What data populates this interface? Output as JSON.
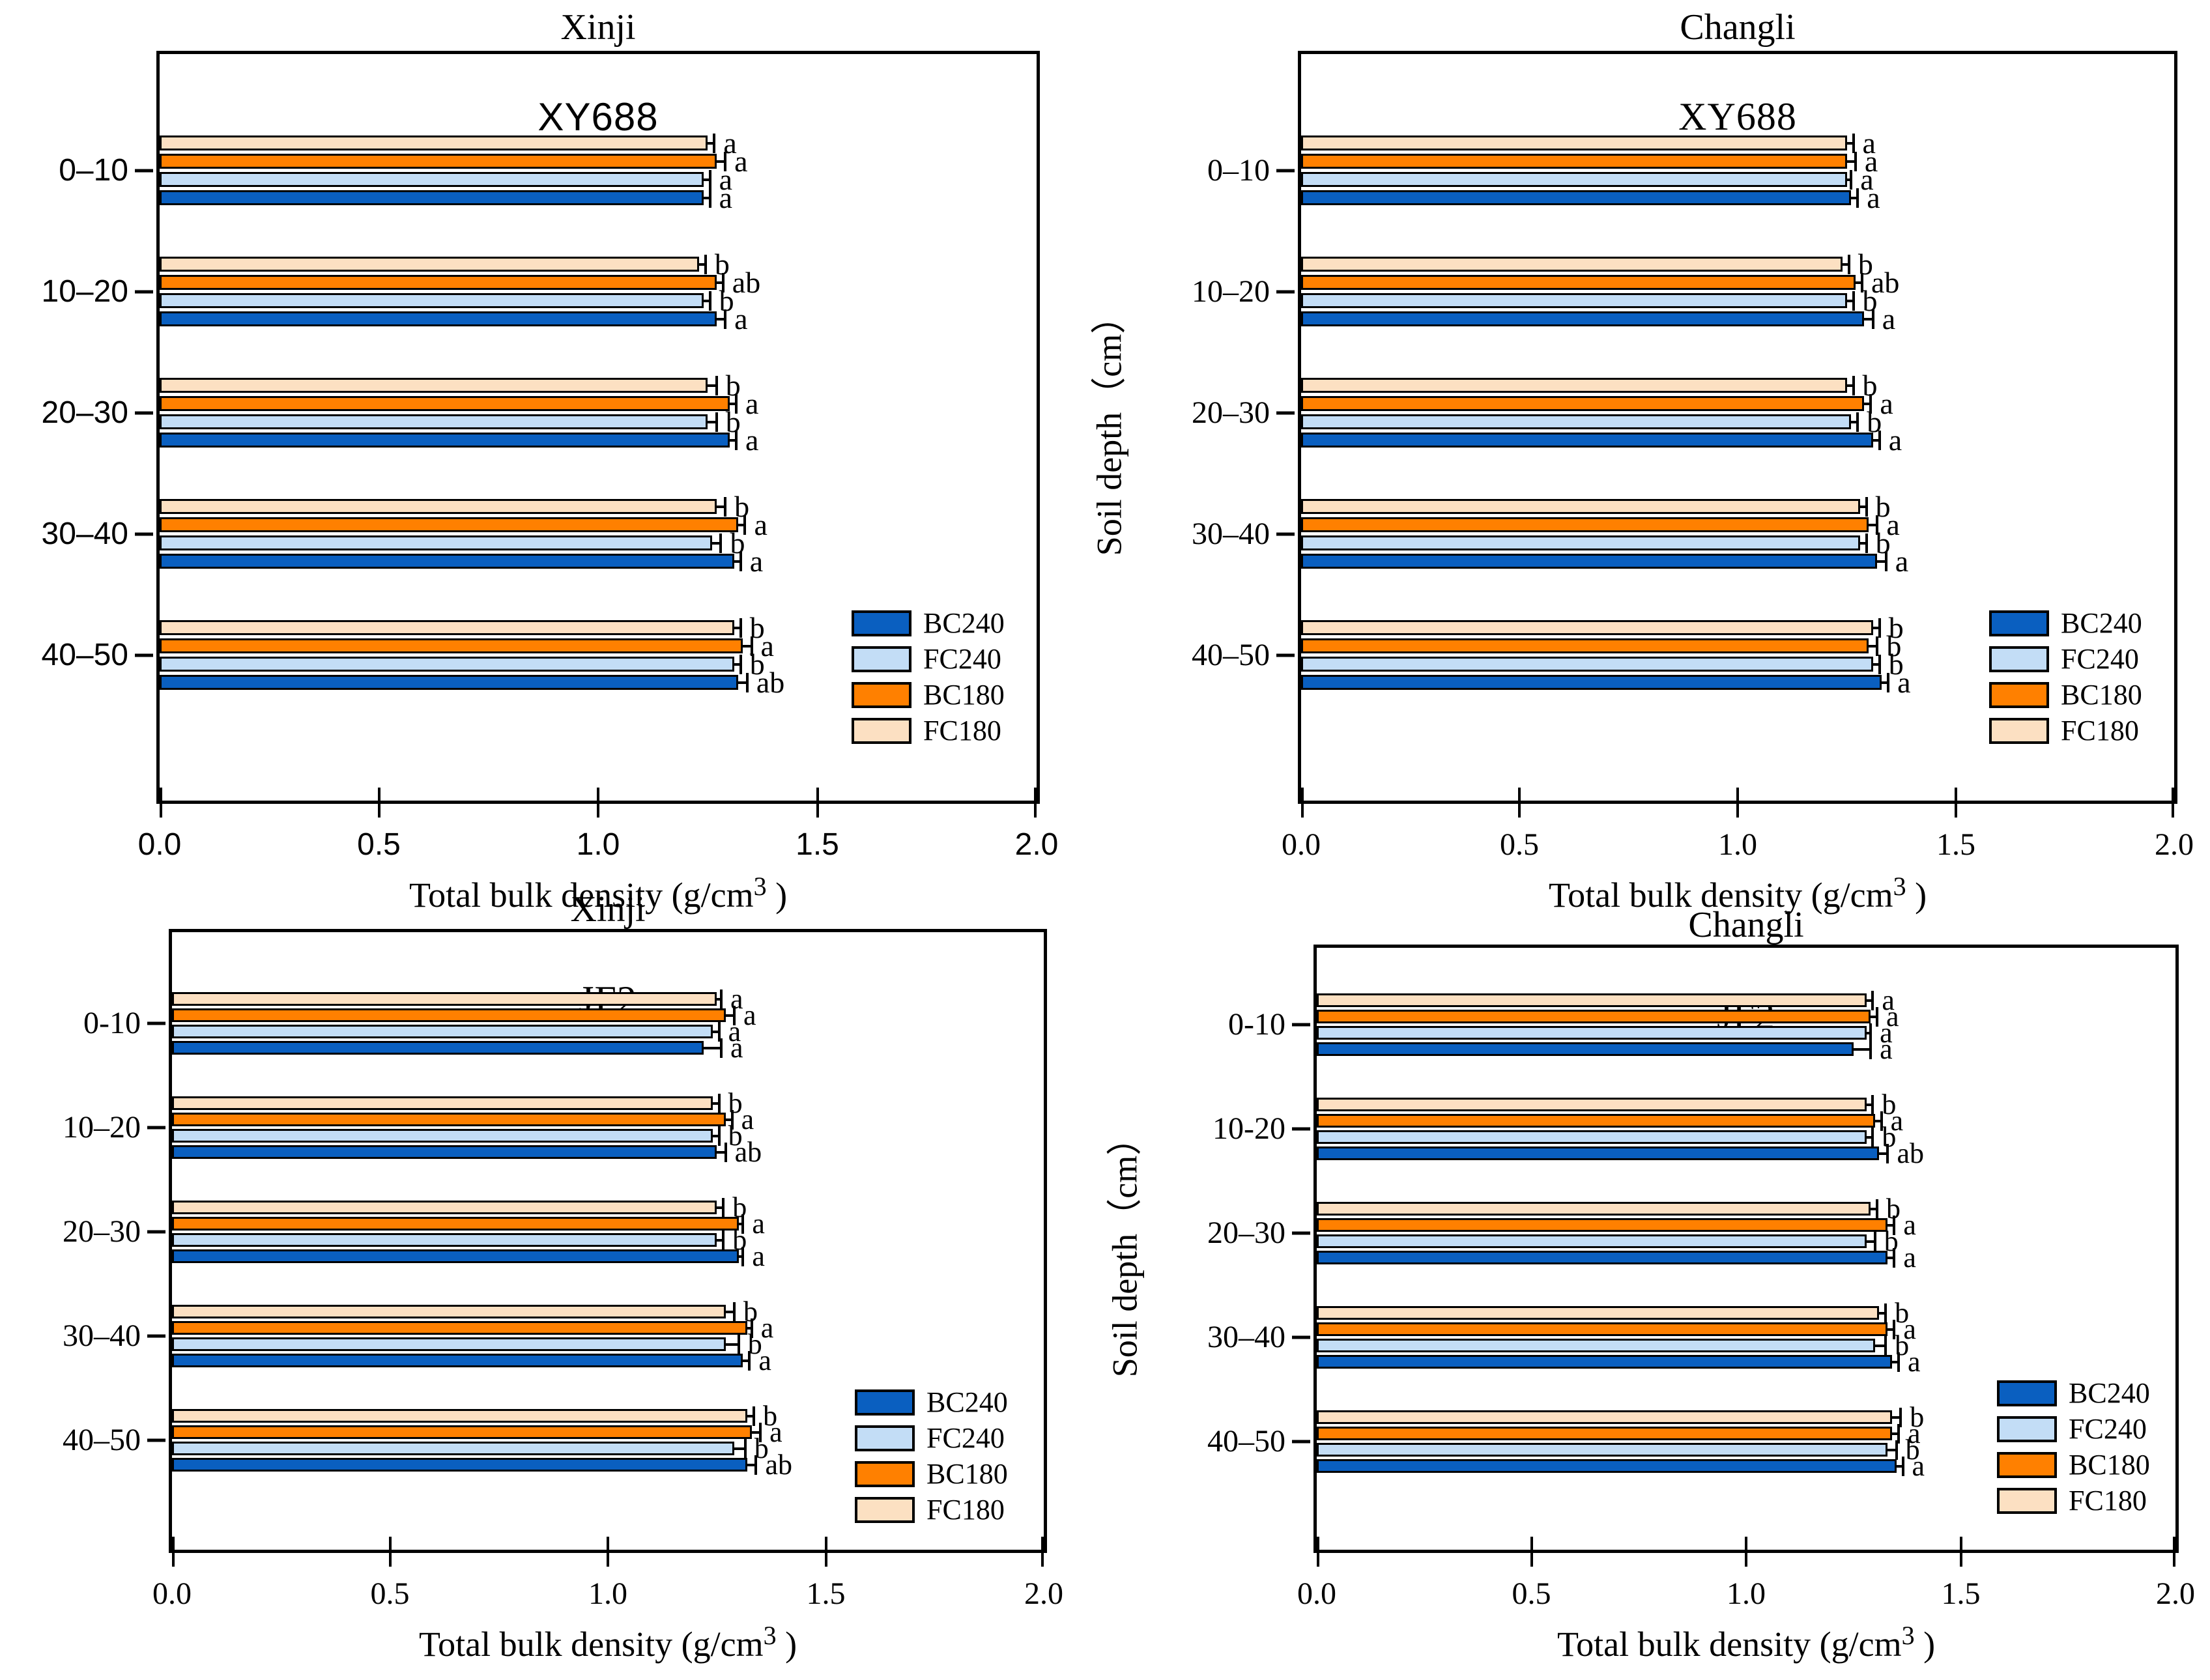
{
  "figure_colors": {
    "BC240": "#0A5FC0",
    "FC240": "#C3DDF6",
    "BC180": "#FF8000",
    "FC180": "#FCE0C2",
    "axis": "#000000",
    "background": "#FFFFFF"
  },
  "chart_data": {
    "type": "bar",
    "orientation": "horizontal",
    "xlim": [
      0.0,
      2.0
    ],
    "x_ticks": [
      "0.0",
      "0.5",
      "1.0",
      "1.5",
      "2.0"
    ],
    "xlabel_pre": "Total bulk density (g/cm",
    "xlabel_sup": "3",
    "xlabel_post": " )",
    "ylabel": "Soil depth（cm）",
    "legend_order": [
      "BC240",
      "FC240",
      "BC180",
      "FC180"
    ],
    "panels": [
      {
        "id": "xinji-xy688",
        "title": "Xinji",
        "subtitle": "XY688",
        "categories": [
          "0–10",
          "10–20",
          "20–30",
          "30–40",
          "40–50"
        ],
        "series": [
          {
            "name": "BC240",
            "values": [
              1.24,
              1.27,
              1.3,
              1.31,
              1.32
            ],
            "errors": [
              0.015,
              0.02,
              0.015,
              0.015,
              0.02
            ],
            "letters": [
              "a",
              "a",
              "a",
              "a",
              "ab"
            ]
          },
          {
            "name": "FC240",
            "values": [
              1.24,
              1.24,
              1.25,
              1.26,
              1.31
            ],
            "errors": [
              0.015,
              0.015,
              0.02,
              0.02,
              0.015
            ],
            "letters": [
              "a",
              "b",
              "b",
              "b",
              "b"
            ]
          },
          {
            "name": "BC180",
            "values": [
              1.27,
              1.27,
              1.3,
              1.32,
              1.33
            ],
            "errors": [
              0.02,
              0.015,
              0.015,
              0.015,
              0.02
            ],
            "letters": [
              "a",
              "ab",
              "a",
              "a",
              "a"
            ]
          },
          {
            "name": "FC180",
            "values": [
              1.25,
              1.23,
              1.25,
              1.27,
              1.31
            ],
            "errors": [
              0.015,
              0.015,
              0.02,
              0.02,
              0.015
            ],
            "letters": [
              "a",
              "b",
              "b",
              "b",
              "b"
            ]
          }
        ]
      },
      {
        "id": "changli-xy688",
        "title": "Changli",
        "subtitle": "XY688",
        "categories": [
          "0–10",
          "10–20",
          "20–30",
          "30–40",
          "40–50"
        ],
        "series": [
          {
            "name": "BC240",
            "values": [
              1.26,
              1.29,
              1.31,
              1.32,
              1.33
            ],
            "errors": [
              0.015,
              0.02,
              0.015,
              0.02,
              0.015
            ],
            "letters": [
              "a",
              "a",
              "a",
              "a",
              "a"
            ]
          },
          {
            "name": "FC240",
            "values": [
              1.25,
              1.25,
              1.26,
              1.28,
              1.31
            ],
            "errors": [
              0.01,
              0.015,
              0.015,
              0.015,
              0.015
            ],
            "letters": [
              "a",
              "b",
              "b",
              "b",
              "b"
            ]
          },
          {
            "name": "BC180",
            "values": [
              1.25,
              1.27,
              1.29,
              1.3,
              1.3
            ],
            "errors": [
              0.02,
              0.015,
              0.015,
              0.02,
              0.02
            ],
            "letters": [
              "a",
              "ab",
              "a",
              "a",
              "b"
            ]
          },
          {
            "name": "FC180",
            "values": [
              1.25,
              1.24,
              1.25,
              1.28,
              1.31
            ],
            "errors": [
              0.015,
              0.015,
              0.015,
              0.015,
              0.015
            ],
            "letters": [
              "a",
              "b",
              "b",
              "b",
              "b"
            ]
          }
        ]
      },
      {
        "id": "xinji-jf2",
        "title": "Xinji",
        "subtitle": "JF2",
        "categories": [
          "0-10",
          "10–20",
          "20–30",
          "30–40",
          "40–50"
        ],
        "series": [
          {
            "name": "BC240",
            "values": [
              1.22,
              1.25,
              1.3,
              1.31,
              1.32
            ],
            "errors": [
              0.04,
              0.02,
              0.01,
              0.015,
              0.02
            ],
            "letters": [
              "a",
              "ab",
              "a",
              "a",
              "ab"
            ]
          },
          {
            "name": "FC240",
            "values": [
              1.24,
              1.24,
              1.25,
              1.27,
              1.29
            ],
            "errors": [
              0.015,
              0.015,
              0.015,
              0.03,
              0.025
            ],
            "letters": [
              "a",
              "b",
              "b",
              "b",
              "b"
            ]
          },
          {
            "name": "BC180",
            "values": [
              1.27,
              1.27,
              1.3,
              1.32,
              1.33
            ],
            "errors": [
              0.02,
              0.015,
              0.01,
              0.01,
              0.02
            ],
            "letters": [
              "a",
              "a",
              "a",
              "a",
              "a"
            ]
          },
          {
            "name": "FC180",
            "values": [
              1.25,
              1.24,
              1.25,
              1.27,
              1.32
            ],
            "errors": [
              0.01,
              0.015,
              0.015,
              0.02,
              0.015
            ],
            "letters": [
              "a",
              "b",
              "b",
              "b",
              "b"
            ]
          }
        ]
      },
      {
        "id": "changli-jf2",
        "title": "Changli",
        "subtitle": "JF2",
        "categories": [
          "0-10",
          "10-20",
          "20–30",
          "30–40",
          "40–50"
        ],
        "series": [
          {
            "name": "BC240",
            "values": [
              1.25,
              1.31,
              1.33,
              1.34,
              1.35
            ],
            "errors": [
              0.04,
              0.02,
              0.015,
              0.015,
              0.015
            ],
            "letters": [
              "a",
              "ab",
              "a",
              "a",
              "a"
            ]
          },
          {
            "name": "FC240",
            "values": [
              1.28,
              1.28,
              1.28,
              1.3,
              1.33
            ],
            "errors": [
              0.01,
              0.015,
              0.02,
              0.025,
              0.02
            ],
            "letters": [
              "a",
              "b",
              "b",
              "b",
              "b"
            ]
          },
          {
            "name": "BC180",
            "values": [
              1.29,
              1.3,
              1.33,
              1.33,
              1.34
            ],
            "errors": [
              0.015,
              0.015,
              0.015,
              0.015,
              0.015
            ],
            "letters": [
              "a",
              "a",
              "a",
              "a",
              "a"
            ]
          },
          {
            "name": "FC180",
            "values": [
              1.28,
              1.28,
              1.29,
              1.31,
              1.34
            ],
            "errors": [
              0.015,
              0.015,
              0.015,
              0.015,
              0.02
            ],
            "letters": [
              "a",
              "b",
              "b",
              "b",
              "b"
            ]
          }
        ]
      }
    ]
  }
}
